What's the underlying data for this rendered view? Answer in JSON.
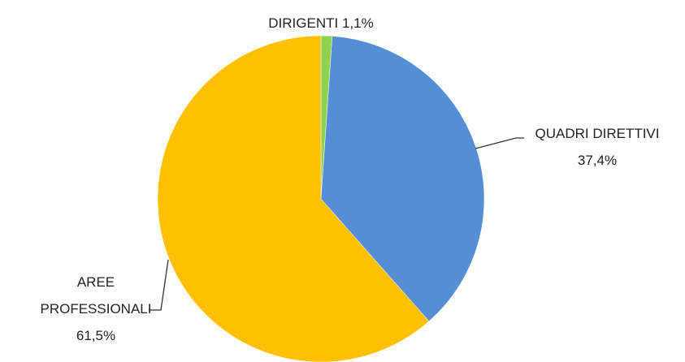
{
  "chart_data": {
    "type": "pie",
    "categories": [
      "DIRIGENTI",
      "QUADRI DIRETTIVI",
      "AREE PROFESSIONALI"
    ],
    "values": [
      1.1,
      37.4,
      61.5
    ],
    "value_labels": [
      "1,1%",
      "37,4%",
      "61,5%"
    ],
    "colors": [
      "#92d050",
      "#558ed5",
      "#ffc000"
    ]
  }
}
